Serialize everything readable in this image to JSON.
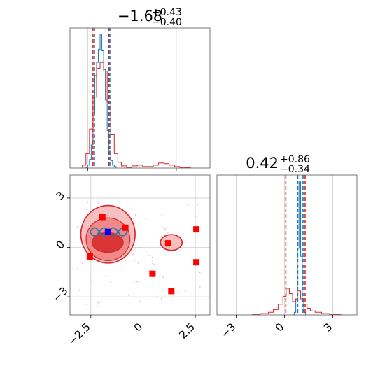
{
  "chart_data": [
    {
      "panel": "marginal-1",
      "type": "step-histogram",
      "title": {
        "median": "−1.68",
        "upper": "+0.43",
        "lower": "−0.40"
      },
      "xlim": [
        -3.5,
        4.4
      ],
      "xticks": [
        -2.5,
        0.0,
        2.5
      ],
      "grid": true,
      "quantile_lines": [
        {
          "color": "#d62728",
          "values": [
            -2.2,
            -1.31
          ]
        },
        {
          "color": "#1f77b4",
          "values": [
            -2.12,
            -1.25
          ]
        }
      ],
      "series": [
        {
          "color": "#1f77b4",
          "x_edges": [
            -2.6,
            -2.5,
            -2.4,
            -2.3,
            -2.2,
            -2.1,
            -2.0,
            -1.9,
            -1.8,
            -1.7,
            -1.6,
            -1.5,
            -1.4,
            -1.3,
            -1.2,
            -1.1,
            -1.0,
            -0.9
          ],
          "counts": [
            0.5,
            2,
            6,
            16,
            38,
            64,
            73,
            82,
            92,
            81,
            68,
            47,
            26,
            12,
            5,
            2,
            1
          ]
        },
        {
          "color": "#d62728",
          "x_edges": [
            -2.8,
            -2.6,
            -2.4,
            -2.2,
            -2.0,
            -1.8,
            -1.6,
            -1.4,
            -1.2,
            -1.0,
            -0.8,
            -0.6,
            -0.3,
            0.0,
            0.3,
            0.6,
            0.9,
            1.2,
            1.5,
            1.8,
            2.1,
            2.4,
            2.7,
            3.0,
            3.3
          ],
          "counts": [
            2,
            10,
            27,
            49,
            69,
            73,
            67,
            46,
            23,
            10,
            4,
            1.5,
            0.5,
            1.5,
            2,
            1,
            1,
            2,
            3.5,
            3,
            2,
            1,
            0.5,
            0.3
          ]
        }
      ]
    },
    {
      "panel": "joint",
      "type": "contour-scatter",
      "xlim": [
        -3.5,
        3.2
      ],
      "ylim": [
        -4.1,
        4.4
      ],
      "xticks": [
        -2.5,
        0.0,
        2.5
      ],
      "yticks": [
        3,
        0,
        -3
      ],
      "grid": true,
      "red_contours": [
        {
          "cx": -1.68,
          "cy": 0.8,
          "rx": 1.3,
          "ry": 1.75,
          "level": "outer"
        },
        {
          "cx": -1.68,
          "cy": 0.5,
          "rx": 1.05,
          "ry": 1.3,
          "level": "middle"
        },
        {
          "cx": -1.7,
          "cy": 0.3,
          "rx": 0.75,
          "ry": 0.6,
          "level": "inner"
        },
        {
          "cx": 1.35,
          "cy": 0.3,
          "rx": 0.52,
          "ry": 0.48,
          "level": "outer"
        }
      ],
      "red_points": [
        {
          "x": -1.95,
          "y": 1.85
        },
        {
          "x": -0.85,
          "y": 1.2
        },
        {
          "x": -2.55,
          "y": -0.55
        },
        {
          "x": 1.2,
          "y": 0.25
        },
        {
          "x": 2.55,
          "y": 1.1
        },
        {
          "x": 2.55,
          "y": -0.9
        },
        {
          "x": 0.45,
          "y": -1.6
        },
        {
          "x": 1.35,
          "y": -2.65
        }
      ],
      "blue_point": {
        "x": -1.68,
        "y": 0.95
      },
      "blue_band": {
        "x_range": [
          -2.55,
          -0.75
        ],
        "y": 0.95,
        "amplitude": 0.25
      }
    },
    {
      "panel": "marginal-2",
      "type": "step-histogram",
      "title": {
        "median": "0.42",
        "upper": "+0.86",
        "lower": "−0.34"
      },
      "xlim": [
        -4.2,
        4.5
      ],
      "xticks": [
        -3,
        0,
        3
      ],
      "grid": true,
      "quantile_lines": [
        {
          "color": "#d62728",
          "values": [
            0.08,
            1.28
          ]
        },
        {
          "color": "#1f77b4",
          "values": [
            0.82,
            1.15
          ]
        }
      ],
      "series": [
        {
          "color": "#1f77b4",
          "x_edges": [
            0.6,
            0.7,
            0.8,
            0.9,
            1.0,
            1.1,
            1.2,
            1.3
          ],
          "counts": [
            2,
            12,
            50,
            100,
            44,
            10,
            2
          ]
        },
        {
          "color": "#d62728",
          "x_edges": [
            -2.0,
            -1.5,
            -1.0,
            -0.7,
            -0.4,
            -0.1,
            0.1,
            0.3,
            0.5,
            0.7,
            0.8,
            1.0,
            1.2,
            1.4,
            1.6,
            1.9,
            2.3,
            2.8,
            3.5
          ],
          "counts": [
            0.5,
            1,
            2,
            4,
            8,
            14,
            20,
            16,
            10,
            12,
            18,
            12,
            8,
            5,
            3,
            2,
            1,
            0.5
          ]
        }
      ]
    }
  ]
}
